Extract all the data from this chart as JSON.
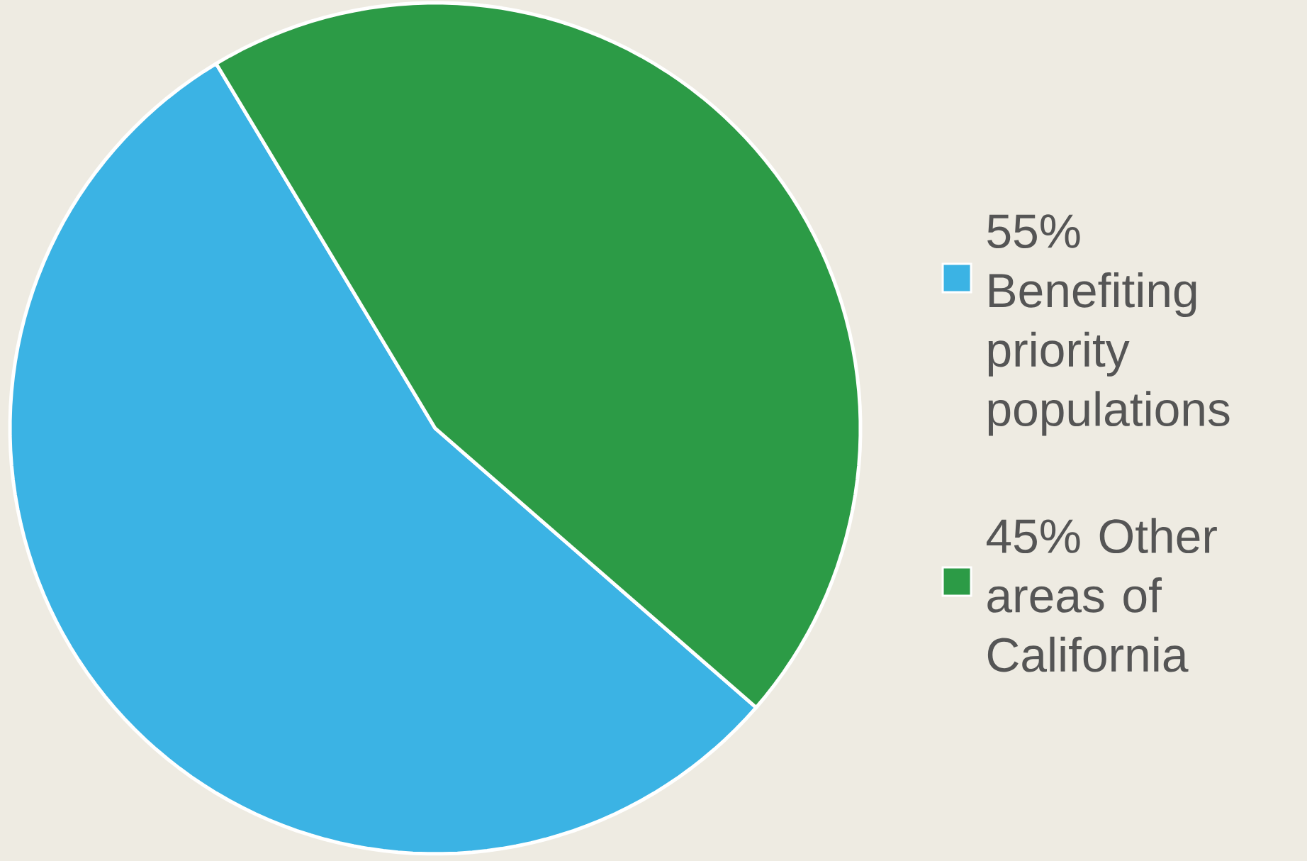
{
  "chart_data": {
    "type": "pie",
    "categories": [
      "55% Benefiting priority populations",
      "45% Other areas of California"
    ],
    "values": [
      55,
      45
    ],
    "colors": [
      "#3bb3e4",
      "#2c9b46"
    ],
    "legend": "right"
  }
}
